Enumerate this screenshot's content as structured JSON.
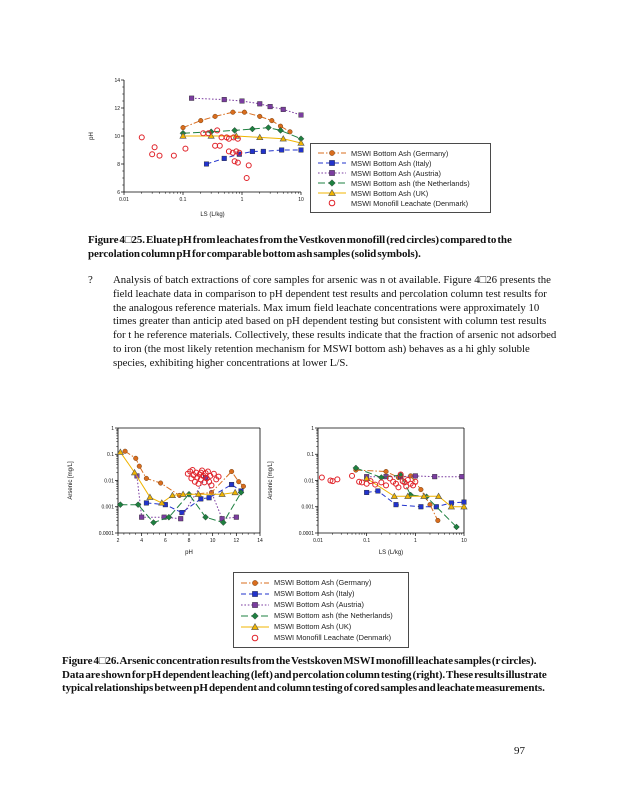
{
  "page": {
    "number": "97"
  },
  "figure25": {
    "caption": "Figure 4□25.   Eluate pH from leachates from the Vestkoven monofill (red circles) compared to the percolation column pH for comparable bottom ash samples (solid symbols)."
  },
  "bullet": {
    "marker": "?",
    "text": "Analysis of batch extractions of core samples for arsenic was n ot available.  Figure 4□26 presents the field leachate data  in comparison to pH dependent  test results and percolation column test results for the analogous reference materials.  Max imum field leachate concentrations were approximately 10 times greater than anticip ated based on pH dependent testing but consistent with column test results for t he reference materials.  Collectively, these results indicate that the fraction of arsenic not adsorbed to iron (the most likely retention mechanism for MSWI bottom ash) behaves as a hi ghly soluble species, exhibiting higher concentrations at lower L/S."
  },
  "figure26": {
    "caption": "Figure 4□26.  Arsenic concentration results from the Vestskoven MSWI monofill leachate samples (r circles). Data are shown for pH dependent leaching (left) and percolation column testing (right). These results illustrate typical relationships between pH dependent and column testing of cored samples and leachate measurements."
  },
  "legend": {
    "entries": [
      {
        "label": "MSWI Bottom Ash (Germany)",
        "color": "#d96d1e",
        "marker": "circle",
        "line": "dashdot"
      },
      {
        "label": "MSWI Bottom Ash (Italy)",
        "color": "#2233cc",
        "marker": "square",
        "line": "dash"
      },
      {
        "label": "MSWI Bottom Ash (Austria)",
        "color": "#7b3da0",
        "marker": "square",
        "line": "dot"
      },
      {
        "label": "MSWI Bottom ash (the Netherlands)",
        "color": "#1e8040",
        "marker": "diamond",
        "line": "longdash"
      },
      {
        "label": "MSWI Bottom Ash (UK)",
        "color": "#f0b400",
        "marker": "triangle",
        "line": "solid"
      },
      {
        "label": "MSWI Monofill Leachate (Denmark)",
        "color": "#e02128",
        "marker": "open-circle",
        "line": "none"
      }
    ]
  },
  "chart_data": [
    {
      "id": "fig25-ph-vs-ls",
      "type": "scatter",
      "title": "",
      "grid": false,
      "box": false,
      "legend_position": "right",
      "x": {
        "scale": "log",
        "min": 0.01,
        "max": 10,
        "ticks": [
          "0.01",
          "0.1",
          "1",
          "10"
        ],
        "label": "LS     (L/kg)"
      },
      "y": {
        "scale": "linear",
        "min": 6,
        "max": 14,
        "ticks": [
          "6",
          "8",
          "10",
          "12",
          "14"
        ],
        "minor_step": 0.5,
        "label": "pH"
      },
      "series": [
        {
          "name": "MSWI Bottom Ash (Germany)",
          "points": [
            [
              0.1,
              10.6
            ],
            [
              0.2,
              11.1
            ],
            [
              0.35,
              11.4
            ],
            [
              0.7,
              11.7
            ],
            [
              1.1,
              11.7
            ],
            [
              2,
              11.4
            ],
            [
              3.2,
              11.1
            ],
            [
              4.5,
              10.7
            ],
            [
              6.5,
              10.3
            ]
          ]
        },
        {
          "name": "MSWI Bottom Ash (Italy)",
          "points": [
            [
              0.25,
              8.0
            ],
            [
              0.5,
              8.4
            ],
            [
              0.9,
              8.7
            ],
            [
              1.5,
              8.9
            ],
            [
              2.3,
              8.9
            ],
            [
              4.7,
              9.0
            ],
            [
              10,
              9.0
            ]
          ]
        },
        {
          "name": "MSWI Bottom Ash (Austria)",
          "points": [
            [
              0.14,
              12.7
            ],
            [
              0.5,
              12.6
            ],
            [
              1,
              12.5
            ],
            [
              2,
              12.3
            ],
            [
              3,
              12.1
            ],
            [
              5,
              11.9
            ],
            [
              10,
              11.5
            ]
          ]
        },
        {
          "name": "MSWI Bottom ash (the Netherlands)",
          "points": [
            [
              0.1,
              10.2
            ],
            [
              0.3,
              10.3
            ],
            [
              0.75,
              10.4
            ],
            [
              1.5,
              10.5
            ],
            [
              2.8,
              10.6
            ],
            [
              4.5,
              10.4
            ],
            [
              10,
              9.8
            ]
          ]
        },
        {
          "name": "MSWI Bottom Ash (UK)",
          "points": [
            [
              0.1,
              10.0
            ],
            [
              0.3,
              10.0
            ],
            [
              0.8,
              10.0
            ],
            [
              2,
              9.9
            ],
            [
              5,
              9.8
            ],
            [
              10,
              9.5
            ]
          ]
        },
        {
          "name": "MSWI Monofill Leachate (Denmark)",
          "points": [
            [
              0.02,
              9.9
            ],
            [
              0.03,
              8.7
            ],
            [
              0.04,
              8.6
            ],
            [
              0.033,
              9.2
            ],
            [
              0.07,
              8.6
            ],
            [
              0.11,
              9.1
            ],
            [
              0.22,
              10.2
            ],
            [
              0.27,
              10.2
            ],
            [
              0.38,
              10.4
            ],
            [
              0.45,
              9.9
            ],
            [
              0.55,
              9.9
            ],
            [
              0.35,
              9.3
            ],
            [
              0.42,
              9.3
            ],
            [
              0.6,
              9.8
            ],
            [
              0.72,
              9.9
            ],
            [
              0.85,
              9.8
            ],
            [
              0.6,
              8.9
            ],
            [
              0.7,
              8.8
            ],
            [
              0.8,
              8.9
            ],
            [
              0.9,
              8.8
            ],
            [
              0.75,
              8.2
            ],
            [
              0.85,
              8.1
            ],
            [
              1.3,
              7.9
            ],
            [
              1.2,
              7.0
            ]
          ]
        }
      ]
    },
    {
      "id": "fig26-arsenic-vs-ph",
      "type": "scatter",
      "title": "",
      "grid": false,
      "box": true,
      "x": {
        "scale": "linear",
        "min": 2,
        "max": 14,
        "ticks": [
          "2",
          "4",
          "6",
          "8",
          "10",
          "12",
          "14"
        ],
        "minor_step": 0.5,
        "label": "pH"
      },
      "y": {
        "scale": "log",
        "min": 0.0001,
        "max": 1,
        "ticks": [
          "1",
          "0.1",
          "0.01",
          "0.001",
          "0.0001"
        ],
        "label": "Arsenic  [mg/L]"
      },
      "series": [
        {
          "name": "MSWI Bottom Ash (Germany)",
          "points": [
            [
              2.6,
              0.13
            ],
            [
              3.5,
              0.07
            ],
            [
              3.8,
              0.035
            ],
            [
              4.4,
              0.012
            ],
            [
              5.6,
              0.008
            ],
            [
              7.2,
              0.0027
            ],
            [
              9.9,
              0.0035
            ],
            [
              11.6,
              0.022
            ],
            [
              12.2,
              0.009
            ],
            [
              12.6,
              0.006
            ]
          ]
        },
        {
          "name": "MSWI Bottom Ash (Italy)",
          "points": [
            [
              4.4,
              0.0014
            ],
            [
              6,
              0.0012
            ],
            [
              7.4,
              0.0006
            ],
            [
              9,
              0.002
            ],
            [
              9.7,
              0.0022
            ],
            [
              11.6,
              0.007
            ],
            [
              12.4,
              0.004
            ]
          ]
        },
        {
          "name": "MSWI Bottom Ash (Austria)",
          "points": [
            [
              3.6,
              0.015
            ],
            [
              4,
              0.0004
            ],
            [
              5.9,
              0.0004
            ],
            [
              7.3,
              0.00035
            ],
            [
              9.4,
              0.013
            ],
            [
              10.8,
              0.00035
            ],
            [
              12,
              0.0004
            ]
          ]
        },
        {
          "name": "MSWI Bottom ash (the Netherlands)",
          "points": [
            [
              2.2,
              0.0012
            ],
            [
              3.7,
              0.0012
            ],
            [
              5,
              0.00025
            ],
            [
              6.3,
              0.0004
            ],
            [
              8,
              0.003
            ],
            [
              9.4,
              0.0004
            ],
            [
              10.9,
              0.00025
            ],
            [
              12.4,
              0.0035
            ]
          ]
        },
        {
          "name": "MSWI Bottom Ash (UK)",
          "points": [
            [
              2.2,
              0.12
            ],
            [
              3.4,
              0.02
            ],
            [
              4.7,
              0.0023
            ],
            [
              5.7,
              0.0014
            ],
            [
              6.6,
              0.0027
            ],
            [
              7.5,
              0.003
            ],
            [
              8.8,
              0.003
            ],
            [
              10.8,
              0.003
            ],
            [
              11.9,
              0.0035
            ]
          ]
        },
        {
          "name": "MSWI Monofill Leachate (Denmark)",
          "points": [
            [
              7.9,
              0.018
            ],
            [
              8.1,
              0.022
            ],
            [
              8.2,
              0.012
            ],
            [
              8.3,
              0.025
            ],
            [
              8.4,
              0.016
            ],
            [
              8.5,
              0.009
            ],
            [
              8.6,
              0.02
            ],
            [
              8.7,
              0.013
            ],
            [
              8.8,
              0.0075
            ],
            [
              8.9,
              0.017
            ],
            [
              9.0,
              0.011
            ],
            [
              9.0,
              0.02
            ],
            [
              9.1,
              0.024
            ],
            [
              9.2,
              0.015
            ],
            [
              9.3,
              0.0085
            ],
            [
              9.4,
              0.019
            ],
            [
              9.5,
              0.012
            ],
            [
              9.6,
              0.022
            ],
            [
              9.7,
              0.009
            ],
            [
              9.8,
              0.015
            ],
            [
              9.9,
              0.0065
            ],
            [
              10.1,
              0.018
            ],
            [
              10.3,
              0.011
            ],
            [
              10.5,
              0.014
            ]
          ]
        }
      ]
    },
    {
      "id": "fig26-arsenic-vs-ls",
      "type": "scatter",
      "title": "",
      "grid": false,
      "box": true,
      "x": {
        "scale": "log",
        "min": 0.01,
        "max": 10,
        "ticks": [
          "0.01",
          "0.1",
          "1",
          "10"
        ],
        "label": "LS     (L/kg)"
      },
      "y": {
        "scale": "log",
        "min": 0.0001,
        "max": 1,
        "ticks": [
          "1",
          "0.1",
          "0.01",
          "0.001",
          "0.0001"
        ],
        "label": "Arsenic  [mg/L]"
      },
      "series": [
        {
          "name": "MSWI Bottom Ash (Germany)",
          "points": [
            [
              0.06,
              0.025
            ],
            [
              0.25,
              0.022
            ],
            [
              0.45,
              0.013
            ],
            [
              0.8,
              0.015
            ],
            [
              1.3,
              0.0045
            ],
            [
              2,
              0.0012
            ],
            [
              2.9,
              0.0003
            ]
          ]
        },
        {
          "name": "MSWI Bottom Ash (Italy)",
          "points": [
            [
              0.1,
              0.0035
            ],
            [
              0.17,
              0.004
            ],
            [
              0.4,
              0.0012
            ],
            [
              1.3,
              0.001
            ],
            [
              2.7,
              0.001
            ],
            [
              5.5,
              0.0014
            ],
            [
              10,
              0.0015
            ]
          ]
        },
        {
          "name": "MSWI Bottom Ash (Austria)",
          "points": [
            [
              0.1,
              0.014
            ],
            [
              0.25,
              0.014
            ],
            [
              0.5,
              0.014
            ],
            [
              1,
              0.015
            ],
            [
              2.5,
              0.014
            ],
            [
              9,
              0.014
            ]
          ]
        },
        {
          "name": "MSWI Bottom ash (the Netherlands)",
          "points": [
            [
              0.06,
              0.03
            ],
            [
              0.2,
              0.013
            ],
            [
              0.5,
              0.016
            ],
            [
              0.8,
              0.0028
            ],
            [
              1.7,
              0.0024
            ],
            [
              7,
              0.00017
            ]
          ]
        },
        {
          "name": "MSWI Bottom Ash (UK)",
          "points": [
            [
              0.1,
              0.012
            ],
            [
              0.37,
              0.0025
            ],
            [
              0.7,
              0.0025
            ],
            [
              1.5,
              0.0025
            ],
            [
              3,
              0.0025
            ],
            [
              5.5,
              0.001
            ],
            [
              10,
              0.001
            ]
          ]
        },
        {
          "name": "MSWI Monofill Leachate (Denmark)",
          "points": [
            [
              0.012,
              0.013
            ],
            [
              0.018,
              0.01
            ],
            [
              0.02,
              0.0095
            ],
            [
              0.025,
              0.011
            ],
            [
              0.05,
              0.015
            ],
            [
              0.07,
              0.009
            ],
            [
              0.08,
              0.0085
            ],
            [
              0.1,
              0.0075
            ],
            [
              0.12,
              0.0095
            ],
            [
              0.15,
              0.007
            ],
            [
              0.2,
              0.0085
            ],
            [
              0.25,
              0.0065
            ],
            [
              0.3,
              0.012
            ],
            [
              0.35,
              0.009
            ],
            [
              0.4,
              0.0075
            ],
            [
              0.45,
              0.0055
            ],
            [
              0.5,
              0.017
            ],
            [
              0.55,
              0.0095
            ],
            [
              0.6,
              0.0085
            ],
            [
              0.65,
              0.006
            ],
            [
              0.7,
              0.0105
            ],
            [
              0.8,
              0.0075
            ],
            [
              0.9,
              0.0065
            ],
            [
              1,
              0.009
            ]
          ]
        }
      ]
    }
  ]
}
